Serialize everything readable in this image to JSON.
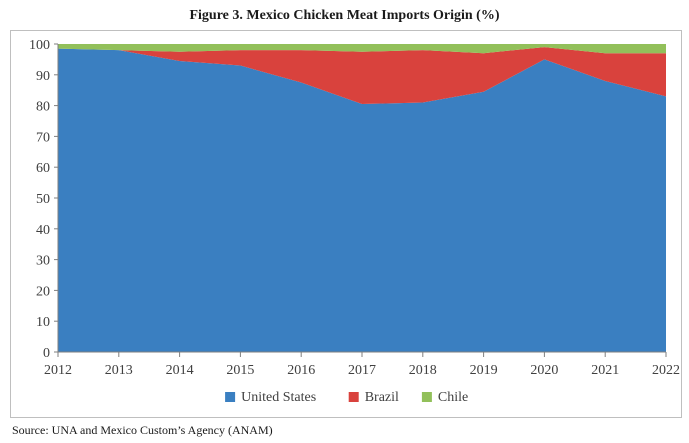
{
  "title": "Figure 3. Mexico Chicken Meat Imports Origin (%)",
  "source": "Source: UNA and Mexico Custom’s Agency (ANAM)",
  "chart_data": {
    "type": "area",
    "stacked": true,
    "x": [
      "2012",
      "2013",
      "2014",
      "2015",
      "2016",
      "2017",
      "2018",
      "2019",
      "2020",
      "2021",
      "2022"
    ],
    "series": [
      {
        "name": "United States",
        "color": "#3a7fc1",
        "values": [
          98.5,
          98,
          94.5,
          93,
          87.5,
          80.5,
          81,
          84.5,
          95,
          88,
          83
        ]
      },
      {
        "name": "Brazil",
        "color": "#d9423d",
        "values": [
          0,
          0,
          3,
          5,
          10.5,
          17,
          17,
          12.5,
          4,
          9,
          14
        ]
      },
      {
        "name": "Chile",
        "color": "#92c05a",
        "values": [
          1.5,
          2,
          2.5,
          2,
          2,
          2.5,
          2,
          3,
          1,
          3,
          3
        ]
      }
    ],
    "ylim": [
      0,
      100
    ],
    "yticks": [
      0,
      10,
      20,
      30,
      40,
      50,
      60,
      70,
      80,
      90,
      100
    ],
    "legend_position": "bottom",
    "grid": false
  }
}
